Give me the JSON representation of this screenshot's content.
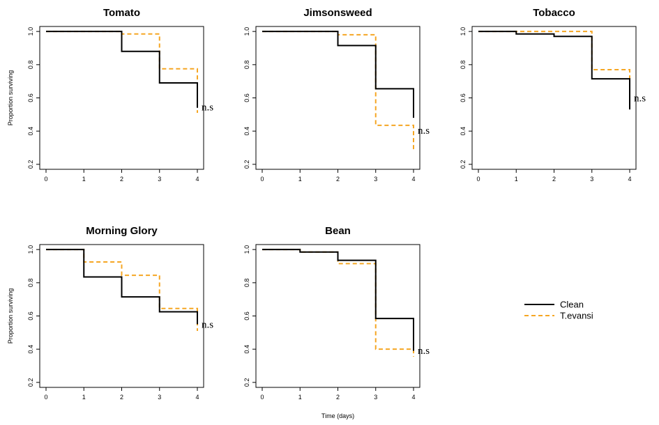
{
  "chart_data": [
    {
      "type": "line",
      "title": "Tomato",
      "ylabel": "Proportion surviving",
      "xlabel": "",
      "xlim": [
        0,
        4
      ],
      "ylim": [
        0.17,
        1.03
      ],
      "xticks": [
        "0",
        "1",
        "2",
        "3",
        "4"
      ],
      "yticks": [
        "0.2",
        "0.4",
        "0.6",
        "0.8",
        "1.0"
      ],
      "annotation": "n.s",
      "series": [
        {
          "name": "Clean",
          "x": [
            0,
            2,
            3,
            4
          ],
          "y": [
            1.0,
            0.88,
            0.69,
            0.54
          ]
        },
        {
          "name": "T.evansi",
          "x": [
            0,
            2,
            3,
            4
          ],
          "y": [
            1.0,
            0.985,
            0.775,
            0.51
          ]
        }
      ]
    },
    {
      "type": "line",
      "title": "Jimsonsweed",
      "ylabel": "",
      "xlabel": "",
      "xlim": [
        0,
        4
      ],
      "ylim": [
        0.17,
        1.03
      ],
      "xticks": [
        "0",
        "1",
        "2",
        "3",
        "4"
      ],
      "yticks": [
        "0.2",
        "0.4",
        "0.6",
        "0.8",
        "1.0"
      ],
      "annotation": "n.s",
      "series": [
        {
          "name": "Clean",
          "x": [
            0,
            2,
            3,
            4
          ],
          "y": [
            1.0,
            0.915,
            0.655,
            0.48
          ]
        },
        {
          "name": "T.evansi",
          "x": [
            0,
            2,
            3,
            4
          ],
          "y": [
            1.0,
            0.98,
            0.435,
            0.29
          ]
        }
      ]
    },
    {
      "type": "line",
      "title": "Tobacco",
      "ylabel": "",
      "xlabel": "",
      "xlim": [
        0,
        4
      ],
      "ylim": [
        0.17,
        1.03
      ],
      "xticks": [
        "0",
        "1",
        "2",
        "3",
        "4"
      ],
      "yticks": [
        "0.2",
        "0.4",
        "0.6",
        "0.8",
        "1.0"
      ],
      "annotation": "n.s",
      "series": [
        {
          "name": "Clean",
          "x": [
            0,
            1,
            2,
            3,
            4
          ],
          "y": [
            1.0,
            0.985,
            0.97,
            0.715,
            0.53
          ]
        },
        {
          "name": "T.evansi",
          "x": [
            0,
            3,
            4
          ],
          "y": [
            1.0,
            0.77,
            0.63
          ]
        }
      ]
    },
    {
      "type": "line",
      "title": "Morning Glory",
      "ylabel": "Proportion surviving",
      "xlabel": "",
      "xlim": [
        0,
        4
      ],
      "ylim": [
        0.17,
        1.03
      ],
      "xticks": [
        "0",
        "1",
        "2",
        "3",
        "4"
      ],
      "yticks": [
        "0.2",
        "0.4",
        "0.6",
        "0.8",
        "1.0"
      ],
      "annotation": "n.s",
      "series": [
        {
          "name": "Clean",
          "x": [
            0,
            1,
            2,
            3,
            4
          ],
          "y": [
            1.0,
            0.835,
            0.715,
            0.625,
            0.55
          ]
        },
        {
          "name": "T.evansi",
          "x": [
            0,
            1,
            2,
            3,
            4
          ],
          "y": [
            1.0,
            0.925,
            0.845,
            0.645,
            0.51
          ]
        }
      ]
    },
    {
      "type": "line",
      "title": "Bean",
      "ylabel": "",
      "xlabel": "Time (days)",
      "xlim": [
        0,
        4
      ],
      "ylim": [
        0.17,
        1.03
      ],
      "xticks": [
        "0",
        "1",
        "2",
        "3",
        "4"
      ],
      "yticks": [
        "0.2",
        "0.4",
        "0.6",
        "0.8",
        "1.0"
      ],
      "annotation": "n.s",
      "series": [
        {
          "name": "Clean",
          "x": [
            0,
            1,
            2,
            3,
            4
          ],
          "y": [
            1.0,
            0.985,
            0.935,
            0.585,
            0.39
          ]
        },
        {
          "name": "T.evansi",
          "x": [
            0,
            1,
            2,
            3,
            4
          ],
          "y": [
            1.0,
            0.985,
            0.915,
            0.4,
            0.355
          ]
        }
      ]
    }
  ],
  "legend": {
    "position": "right",
    "entries": [
      {
        "label": "Clean",
        "color": "#000000",
        "style": "solid"
      },
      {
        "label": "T.evansi",
        "color": "#f5a623",
        "style": "dashed"
      }
    ]
  },
  "colors": {
    "clean": "#000000",
    "t_evansi": "#f5a623"
  }
}
